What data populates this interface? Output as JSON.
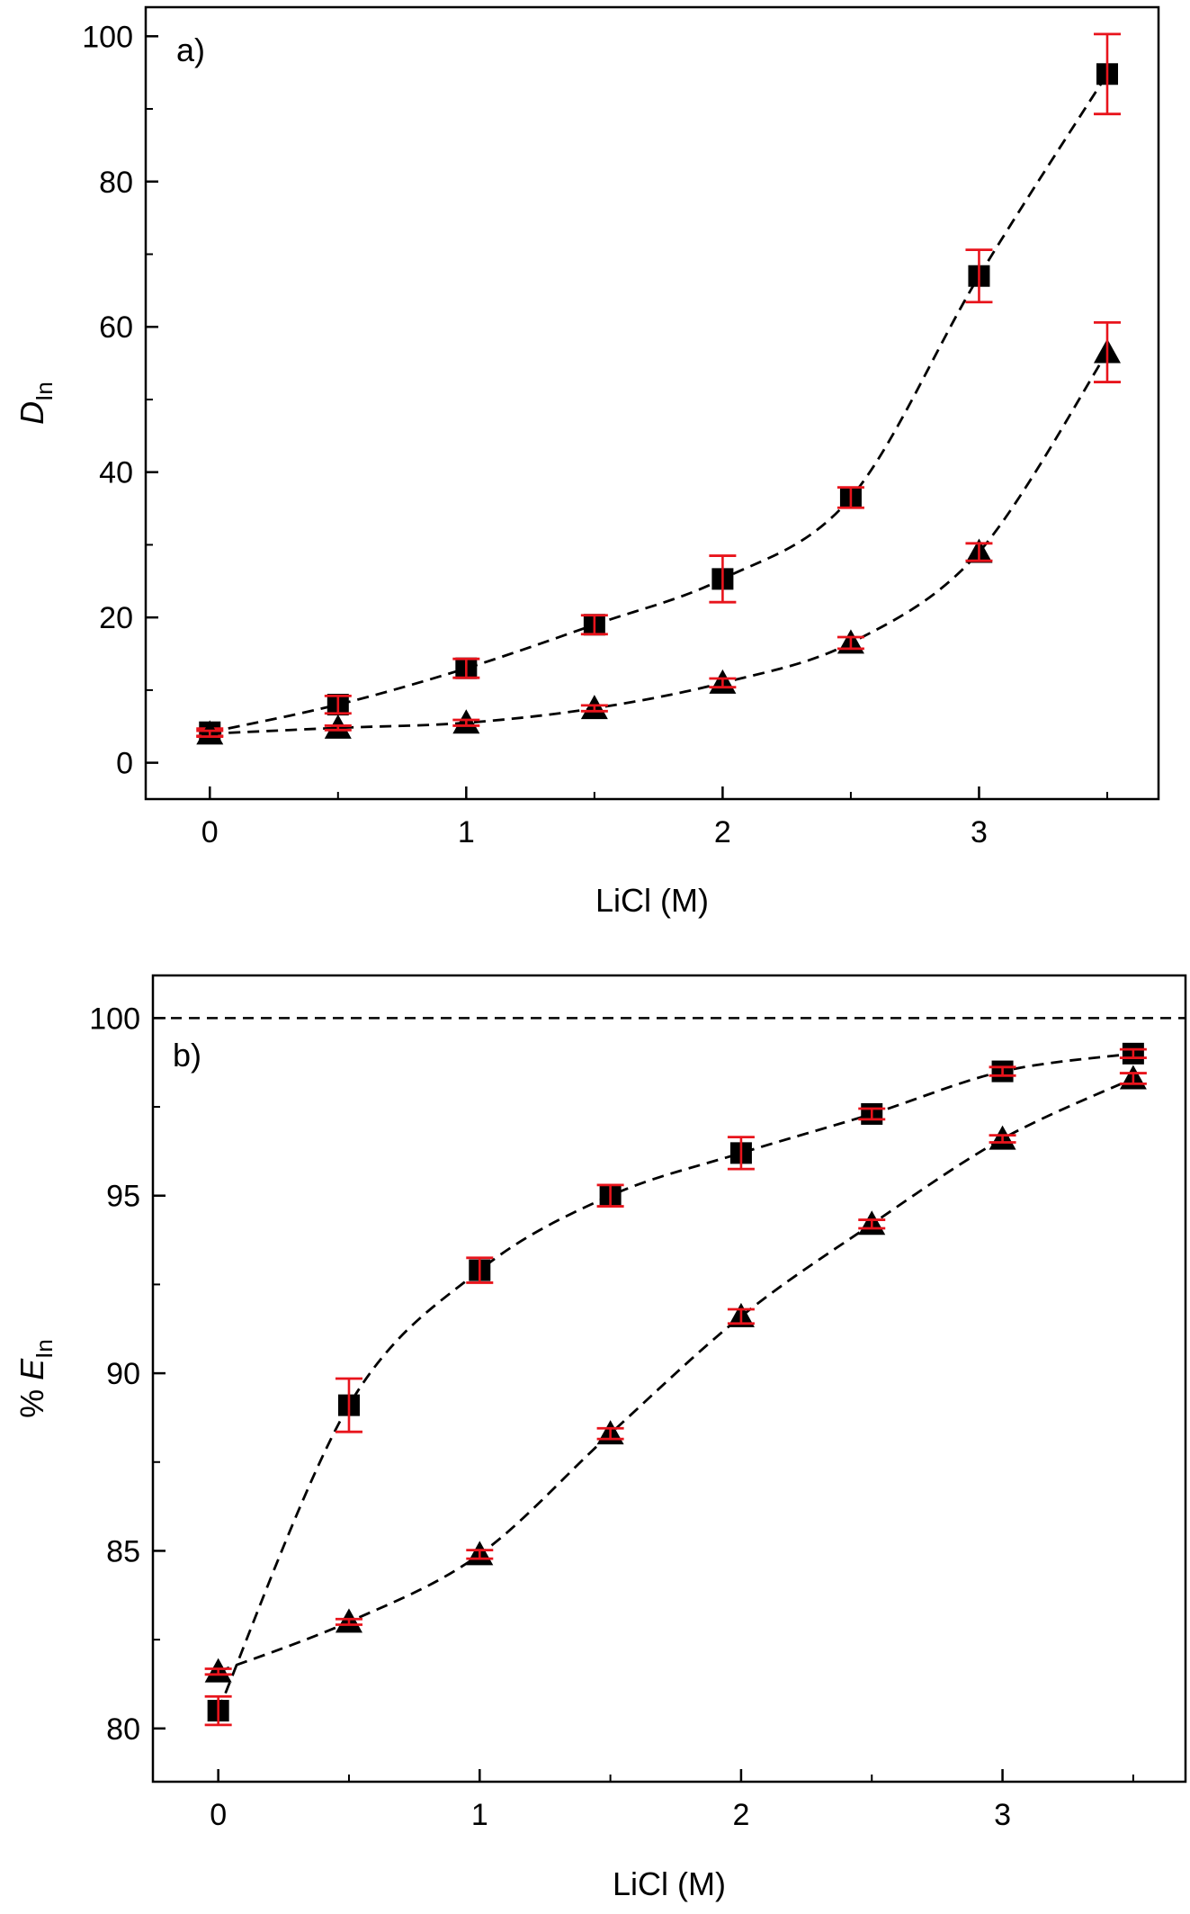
{
  "chart_data": [
    {
      "type": "scatter",
      "panel_label": "a)",
      "xlabel": "LiCl (M)",
      "ylabel": {
        "main": "D",
        "subscript": "In"
      },
      "xlim": [
        -0.25,
        3.7
      ],
      "ylim": [
        -5,
        104
      ],
      "xticks": [
        0,
        1,
        2,
        3
      ],
      "xtick_labels": [
        "0",
        "1",
        "2",
        "3"
      ],
      "yticks": [
        0,
        20,
        40,
        60,
        80,
        100
      ],
      "ytick_labels": [
        "0",
        "20",
        "40",
        "60",
        "80",
        "100"
      ],
      "connector": "dashed",
      "errorbar_color": "#e8141c",
      "series": [
        {
          "marker": "square",
          "x": [
            0,
            0.5,
            1,
            1.5,
            2,
            2.5,
            3,
            3.5
          ],
          "y": [
            4.2,
            8.0,
            13.0,
            19.0,
            25.3,
            36.5,
            67.0,
            94.8
          ],
          "err": [
            0.5,
            1.2,
            1.3,
            1.3,
            3.2,
            1.4,
            3.6,
            5.5
          ]
        },
        {
          "marker": "triangle",
          "x": [
            0,
            0.5,
            1,
            1.5,
            2,
            2.5,
            3,
            3.5
          ],
          "y": [
            4.0,
            4.8,
            5.5,
            7.5,
            11.0,
            16.5,
            29.0,
            56.5
          ],
          "err": [
            0.4,
            0.3,
            0.4,
            0.4,
            0.6,
            0.8,
            1.2,
            4.1
          ]
        }
      ]
    },
    {
      "type": "scatter",
      "panel_label": "b)",
      "xlabel": "LiCl (M)",
      "ylabel": {
        "main": "% E",
        "subscript": "In"
      },
      "xlim": [
        -0.25,
        3.7
      ],
      "ylim": [
        78.5,
        101.2
      ],
      "xticks": [
        0,
        1,
        2,
        3
      ],
      "xtick_labels": [
        "0",
        "1",
        "2",
        "3"
      ],
      "yticks": [
        80,
        85,
        90,
        95,
        100
      ],
      "ytick_labels": [
        "80",
        "85",
        "90",
        "95",
        "100"
      ],
      "reference_line": {
        "y": 100,
        "style": "dashed"
      },
      "connector": "dashed",
      "errorbar_color": "#e8141c",
      "series": [
        {
          "marker": "square",
          "x": [
            0,
            0.5,
            1,
            1.5,
            2,
            2.5,
            3,
            3.5
          ],
          "y": [
            80.5,
            89.1,
            92.9,
            95.0,
            96.2,
            97.3,
            98.5,
            99.0
          ],
          "err": [
            0.4,
            0.75,
            0.35,
            0.3,
            0.45,
            0.15,
            0.12,
            0.12
          ]
        },
        {
          "marker": "triangle",
          "x": [
            0,
            0.5,
            1,
            1.5,
            2,
            2.5,
            3,
            3.5
          ],
          "y": [
            81.6,
            83.0,
            84.9,
            88.3,
            91.6,
            94.2,
            96.6,
            98.3
          ],
          "err": [
            0.08,
            0.08,
            0.12,
            0.15,
            0.2,
            0.12,
            0.1,
            0.15
          ]
        }
      ]
    }
  ]
}
